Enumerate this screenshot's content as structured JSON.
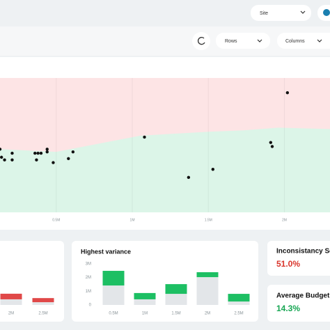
{
  "header": {
    "site_filter": "Site"
  },
  "toolbar": {
    "rows_filter": "Rows",
    "columns_filter": "Columns"
  },
  "scatter": {
    "type": "scatter",
    "x": [
      0.13,
      0.14,
      0.16,
      0.21,
      0.21,
      0.36,
      0.37,
      0.38,
      0.4,
      0.44,
      0.44,
      0.48,
      0.58,
      0.61,
      1.08,
      1.37,
      1.53,
      1.91,
      1.92,
      2.02
    ],
    "y": [
      47,
      41,
      39,
      39,
      44,
      44,
      39,
      44,
      44,
      45,
      47,
      37,
      40,
      45,
      56,
      26,
      32,
      52,
      49,
      89
    ],
    "xlim": [
      0.13,
      2.3
    ],
    "ylim": [
      0,
      100
    ],
    "xticks": [
      {
        "value": 0.5,
        "label": "0.5M"
      },
      {
        "value": 1,
        "label": "1M"
      },
      {
        "value": 1.5,
        "label": "1.5M"
      },
      {
        "value": 2,
        "label": "2M"
      }
    ],
    "grid": true,
    "boundary": {
      "x": [
        0.13,
        0.5,
        0.82,
        1.05,
        1.5,
        1.73,
        1.96,
        2.3
      ],
      "y": [
        47,
        45,
        52,
        57,
        60,
        61,
        63,
        62
      ]
    },
    "colors": {
      "above": "#fde4e5",
      "below": "#dcf5e8",
      "point": "#111111"
    }
  },
  "left_chart": {
    "type": "bar",
    "categories": [
      "2M",
      "2.5M"
    ],
    "series": [
      {
        "color": "#e3e6e9",
        "values": [
          0.41,
          0.2
        ]
      },
      {
        "color": "#e04848",
        "values": [
          0.41,
          0.3
        ]
      }
    ],
    "ylim": [
      0,
      3
    ]
  },
  "variance_chart": {
    "type": "bar",
    "title": "Highest variance",
    "categories": [
      "0.5M",
      "1M",
      "1.5M",
      "2M",
      "2.5M"
    ],
    "series": [
      {
        "color": "#e3e6e9",
        "values": [
          1.42,
          0.41,
          0.81,
          2.03,
          0.25
        ]
      },
      {
        "color": "#1dbf63",
        "values": [
          1.07,
          0.46,
          0.71,
          0.36,
          0.56
        ]
      }
    ],
    "ylim": [
      0,
      3
    ],
    "yticks": [
      0,
      {
        "value": 1,
        "label": "1M"
      },
      {
        "value": 2,
        "label": "2M"
      },
      {
        "value": 3,
        "label": "3M"
      }
    ]
  },
  "kpis": [
    {
      "label": "Inconsistancy Score",
      "value": "51.0%",
      "color": "#d9342b"
    },
    {
      "label": "Average Budget Variance",
      "value": "14.3%",
      "color": "#17a653"
    }
  ]
}
